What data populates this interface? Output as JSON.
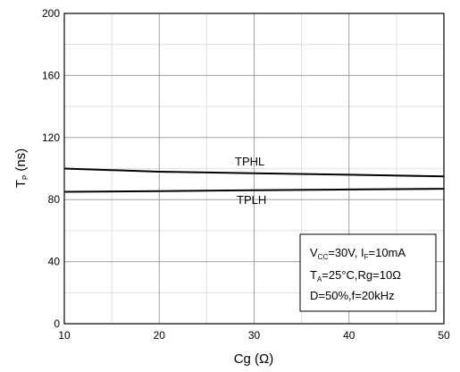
{
  "chart_data": {
    "type": "line",
    "xlabel": "Cg (Ω)",
    "ylabel_main": "T",
    "ylabel_sub": "P",
    "ylabel_unit": "(ns)",
    "xlim": [
      10,
      50
    ],
    "ylim": [
      0,
      200
    ],
    "xticks": [
      10,
      20,
      30,
      40,
      50
    ],
    "yticks": [
      0,
      40,
      80,
      120,
      160,
      200
    ],
    "grid": true,
    "series": [
      {
        "name": "TPHL",
        "x": [
          10,
          20,
          30,
          40,
          50
        ],
        "values": [
          100,
          98,
          97,
          96,
          95
        ]
      },
      {
        "name": "TPLH",
        "x": [
          10,
          20,
          30,
          40,
          50
        ],
        "values": [
          85,
          85.5,
          86,
          86.5,
          87
        ]
      }
    ],
    "conditions": {
      "line1": {
        "a_main": "V",
        "a_sub": "CC",
        "a_val": "=30V, I",
        "b_sub": "F",
        "b_val": "=10mA"
      },
      "line2": {
        "a_main": "T",
        "a_sub": "A",
        "a_val": "=25°C,Rg=10Ω"
      },
      "line3": "D=50%,f=20kHz"
    }
  }
}
